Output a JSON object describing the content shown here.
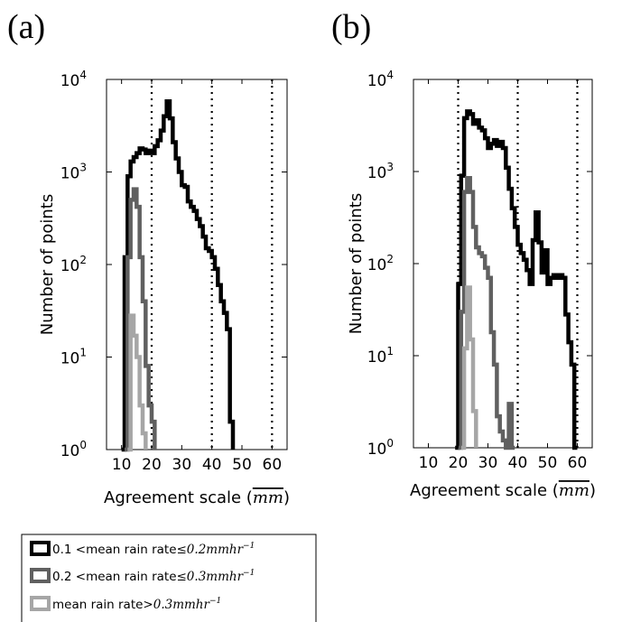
{
  "chart_data": [
    {
      "panel": "(a)",
      "type": "line",
      "drawstyle": "steps",
      "xlabel_text": "Agreement scale (",
      "xlabel_unit": "mm",
      "xlabel_close": ")",
      "ylabel": "Number of points",
      "yscale": "log",
      "xlim": [
        5,
        65
      ],
      "ylim": [
        1,
        10000
      ],
      "xticks": [
        10,
        20,
        30,
        40,
        50,
        60
      ],
      "ytick_bases": [
        "10",
        "10",
        "10",
        "10",
        "10"
      ],
      "ytick_exps": [
        "0",
        "1",
        "2",
        "3",
        "4"
      ],
      "vlines": [
        20,
        40,
        60
      ],
      "series": [
        {
          "color": "#000000",
          "x": [
            10,
            11,
            12,
            13,
            14,
            15,
            16,
            17,
            18,
            19,
            20,
            21,
            22,
            23,
            24,
            25,
            26,
            27,
            28,
            29,
            30,
            31,
            32,
            33,
            34,
            35,
            36,
            37,
            38,
            39,
            40,
            41,
            42,
            43,
            44,
            45,
            46,
            47
          ],
          "y": [
            1,
            120,
            900,
            1300,
            1450,
            1600,
            1800,
            1750,
            1600,
            1700,
            1600,
            1900,
            2200,
            2800,
            4000,
            5800,
            3800,
            2100,
            1400,
            1000,
            720,
            690,
            480,
            420,
            380,
            310,
            260,
            200,
            150,
            140,
            120,
            90,
            60,
            40,
            30,
            20,
            2,
            1
          ]
        },
        {
          "color": "#606060",
          "x": [
            11,
            12,
            13,
            14,
            15,
            16,
            17,
            18,
            19,
            20,
            21
          ],
          "y": [
            1,
            120,
            500,
            650,
            420,
            120,
            40,
            8,
            3,
            2,
            1
          ]
        },
        {
          "color": "#a6a6a6",
          "x": [
            12,
            13,
            14,
            15,
            16,
            17,
            18
          ],
          "y": [
            1,
            28,
            17,
            10,
            3,
            1.5,
            1
          ]
        }
      ]
    },
    {
      "panel": "(b)",
      "type": "line",
      "drawstyle": "steps",
      "xlabel_text": "Agreement scale (",
      "xlabel_unit": "mm",
      "xlabel_close": ")",
      "ylabel": "Number of points",
      "yscale": "log",
      "xlim": [
        5,
        65
      ],
      "ylim": [
        1,
        10000
      ],
      "xticks": [
        10,
        20,
        30,
        40,
        50,
        60
      ],
      "ytick_bases": [
        "10",
        "10",
        "10",
        "10",
        "10"
      ],
      "ytick_exps": [
        "0",
        "1",
        "2",
        "3",
        "4"
      ],
      "vlines": [
        20,
        40,
        60
      ],
      "series": [
        {
          "color": "#000000",
          "x": [
            19,
            20,
            21,
            22,
            23,
            24,
            25,
            26,
            27,
            28,
            29,
            30,
            31,
            32,
            33,
            34,
            35,
            36,
            37,
            38,
            39,
            40,
            41,
            42,
            43,
            44,
            45,
            46,
            47,
            48,
            49,
            50,
            51,
            52,
            53,
            54,
            55,
            56,
            57,
            58,
            59,
            60
          ],
          "y": [
            1,
            60,
            900,
            3800,
            4500,
            4200,
            3300,
            3600,
            3000,
            2800,
            2300,
            1800,
            2000,
            2200,
            1900,
            2100,
            1800,
            1100,
            650,
            400,
            250,
            160,
            130,
            110,
            85,
            60,
            180,
            360,
            170,
            80,
            140,
            60,
            70,
            75,
            70,
            75,
            70,
            28,
            14,
            8,
            1,
            1
          ]
        },
        {
          "color": "#606060",
          "x": [
            20,
            21,
            22,
            23,
            24,
            25,
            26,
            27,
            28,
            29,
            30,
            31,
            32,
            33,
            34,
            35,
            36,
            37,
            38,
            39
          ],
          "y": [
            1,
            30,
            600,
            850,
            600,
            250,
            150,
            130,
            120,
            90,
            70,
            18,
            8,
            2.2,
            1.5,
            1.2,
            1,
            3,
            1,
            1
          ]
        },
        {
          "color": "#a6a6a6",
          "x": [
            21,
            22,
            23,
            24,
            25,
            26
          ],
          "y": [
            1,
            12,
            55,
            15,
            2.5,
            1
          ]
        }
      ]
    }
  ],
  "legend": {
    "entries": [
      {
        "color": "#000000",
        "prefix": "0.1 <",
        "label": "mean rain rate",
        "suffix": "≤0.2mmhr",
        "exp": "−1"
      },
      {
        "color": "#606060",
        "prefix": "0.2 <",
        "label": "mean rain rate",
        "suffix": "≤0.3mmhr",
        "exp": "−1"
      },
      {
        "color": "#a6a6a6",
        "prefix": "",
        "label": "mean rain rate",
        "suffix": ">0.3mmhr",
        "exp": "−1"
      }
    ]
  }
}
